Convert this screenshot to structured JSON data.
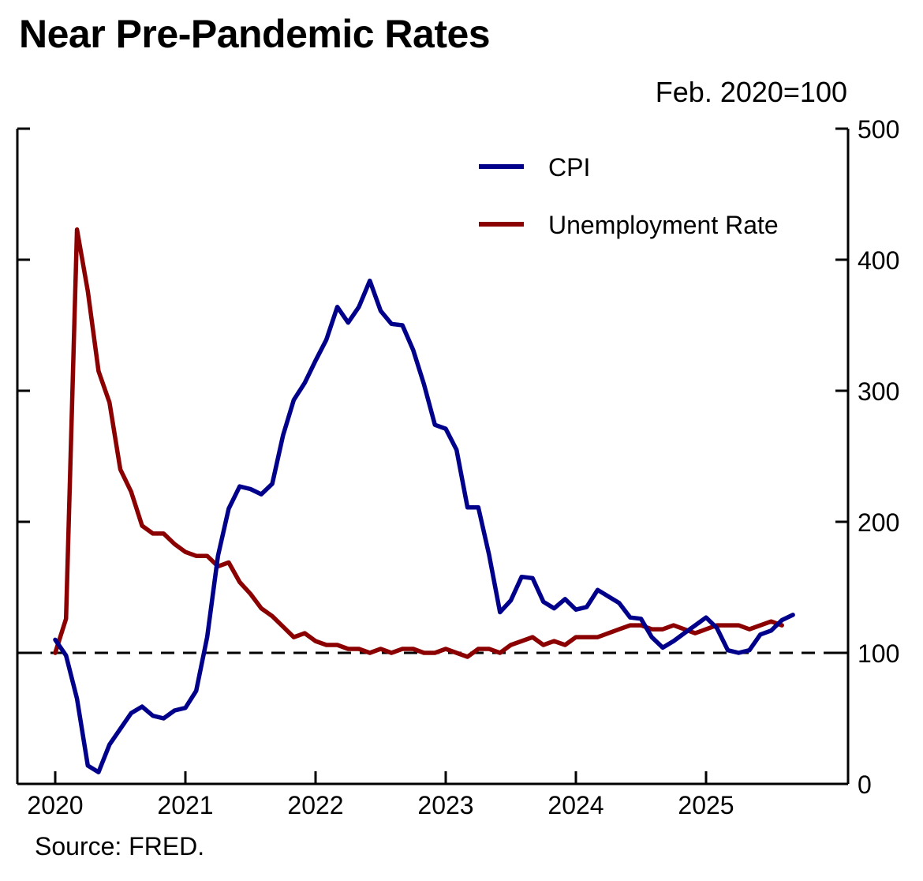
{
  "title": "Near Pre-Pandemic Rates",
  "unit_label": "Feb. 2020=100",
  "source": "Source: FRED.",
  "chart_data": {
    "type": "line",
    "title": "Near Pre-Pandemic Rates",
    "ylabel": "Feb. 2020=100",
    "xlabel": "",
    "xlim": [
      2020.0,
      2026.1
    ],
    "ylim": [
      0,
      500
    ],
    "x_ticks": [
      "2020",
      "2021",
      "2022",
      "2023",
      "2024",
      "2025"
    ],
    "x_tick_values": [
      2020,
      2021,
      2022,
      2023,
      2024,
      2025
    ],
    "y_ticks": [
      0,
      100,
      200,
      300,
      400,
      500
    ],
    "y_axis_side": "right",
    "reference_line": {
      "y": 100,
      "style": "dashed"
    },
    "legend_position": "top-right",
    "series": [
      {
        "name": "CPI",
        "color": "#00008b",
        "x": [
          2020.0,
          2020.083,
          2020.167,
          2020.25,
          2020.333,
          2020.417,
          2020.5,
          2020.583,
          2020.667,
          2020.75,
          2020.833,
          2020.917,
          2021.0,
          2021.083,
          2021.167,
          2021.25,
          2021.333,
          2021.417,
          2021.5,
          2021.583,
          2021.667,
          2021.75,
          2021.833,
          2021.917,
          2022.0,
          2022.083,
          2022.167,
          2022.25,
          2022.333,
          2022.417,
          2022.5,
          2022.583,
          2022.667,
          2022.75,
          2022.833,
          2022.917,
          2023.0,
          2023.083,
          2023.167,
          2023.25,
          2023.333,
          2023.417,
          2023.5,
          2023.583,
          2023.667,
          2023.75,
          2023.833,
          2023.917,
          2024.0,
          2024.083,
          2024.167,
          2024.25,
          2024.333,
          2024.417,
          2024.5,
          2024.583,
          2024.667,
          2024.75,
          2024.833,
          2024.917,
          2025.0,
          2025.083,
          2025.167,
          2025.25,
          2025.333,
          2025.417,
          2025.5,
          2025.583,
          2025.667
        ],
        "y": [
          110,
          98,
          65,
          14,
          9,
          30,
          42,
          54,
          59,
          52,
          50,
          56,
          58,
          71,
          112,
          174,
          210,
          227,
          225,
          221,
          229,
          266,
          293,
          306,
          323,
          339,
          364,
          352,
          364,
          384,
          361,
          351,
          350,
          331,
          305,
          274,
          271,
          255,
          211,
          211,
          175,
          131,
          140,
          158,
          157,
          139,
          134,
          141,
          133,
          135,
          148,
          143,
          138,
          127,
          126,
          112,
          104,
          109,
          115,
          121,
          127,
          119,
          102,
          100,
          102,
          114,
          117,
          125,
          129
        ]
      },
      {
        "name": "Unemployment Rate",
        "color": "#8b0000",
        "x": [
          2020.0,
          2020.083,
          2020.167,
          2020.25,
          2020.333,
          2020.417,
          2020.5,
          2020.583,
          2020.667,
          2020.75,
          2020.833,
          2020.917,
          2021.0,
          2021.083,
          2021.167,
          2021.25,
          2021.333,
          2021.417,
          2021.5,
          2021.583,
          2021.667,
          2021.75,
          2021.833,
          2021.917,
          2022.0,
          2022.083,
          2022.167,
          2022.25,
          2022.333,
          2022.417,
          2022.5,
          2022.583,
          2022.667,
          2022.75,
          2022.833,
          2022.917,
          2023.0,
          2023.083,
          2023.167,
          2023.25,
          2023.333,
          2023.417,
          2023.5,
          2023.583,
          2023.667,
          2023.75,
          2023.833,
          2023.917,
          2024.0,
          2024.083,
          2024.167,
          2024.25,
          2024.333,
          2024.417,
          2024.5,
          2024.583,
          2024.667,
          2024.75,
          2024.833,
          2024.917,
          2025.0,
          2025.083,
          2025.167,
          2025.25,
          2025.333,
          2025.417,
          2025.5,
          2025.583
        ],
        "y": [
          100,
          126,
          423,
          376,
          315,
          291,
          240,
          223,
          197,
          191,
          191,
          183,
          177,
          174,
          174,
          166,
          169,
          154,
          145,
          134,
          128,
          120,
          112,
          115,
          109,
          106,
          106,
          103,
          103,
          100,
          103,
          100,
          103,
          103,
          100,
          100,
          103,
          100,
          97,
          103,
          103,
          100,
          106,
          109,
          112,
          106,
          109,
          106,
          112,
          112,
          112,
          115,
          118,
          121,
          121,
          118,
          118,
          121,
          118,
          115,
          118,
          121,
          121,
          121,
          118,
          121,
          124,
          121
        ]
      }
    ]
  }
}
